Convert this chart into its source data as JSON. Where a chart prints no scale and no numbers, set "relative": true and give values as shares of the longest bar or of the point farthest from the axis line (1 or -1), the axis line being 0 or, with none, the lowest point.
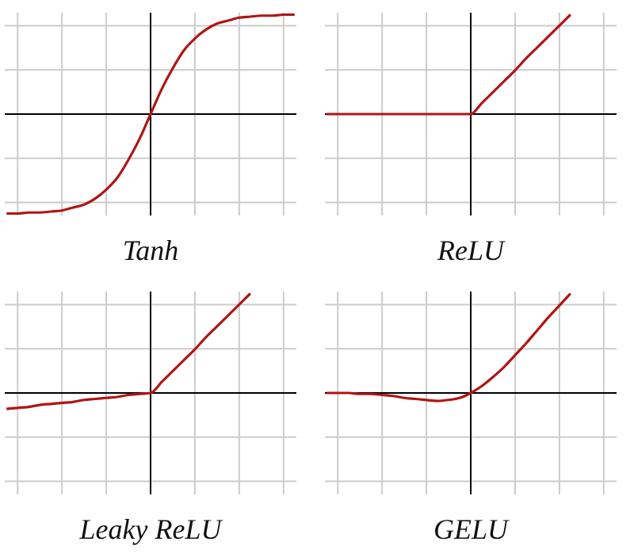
{
  "chart_data": [
    {
      "type": "line",
      "xlabel": "Tanh",
      "relative": true,
      "grid": true,
      "categories": [
        null,
        null,
        null,
        null,
        null,
        null,
        null,
        null,
        null,
        null,
        null,
        null,
        null,
        null,
        null,
        null,
        null,
        null,
        null,
        null,
        null,
        null,
        null,
        null,
        null,
        null,
        null
      ],
      "series": [
        {
          "color": "#b01515",
          "values": [
            -1,
            -1,
            -0.99,
            -0.99,
            -0.98,
            -0.97,
            -0.94,
            -0.91,
            -0.85,
            -0.76,
            -0.64,
            -0.46,
            -0.25,
            0,
            0.25,
            0.46,
            0.64,
            0.76,
            0.85,
            0.91,
            0.94,
            0.97,
            0.98,
            0.99,
            0.99,
            1,
            1
          ]
        }
      ]
    },
    {
      "type": "line",
      "xlabel": "ReLU",
      "relative": true,
      "grid": true,
      "categories": [
        null,
        null,
        null,
        null,
        null,
        null,
        null,
        null,
        null,
        null,
        null,
        null,
        null,
        null,
        null,
        null,
        null,
        null,
        null,
        null,
        null,
        null,
        null,
        null,
        null,
        null,
        null
      ],
      "series": [
        {
          "color": "#b01515",
          "values": [
            0,
            0,
            0,
            0,
            0,
            0,
            0,
            0,
            0,
            0,
            0,
            0,
            0,
            0,
            0.11,
            0.22,
            0.33,
            0.44,
            0.56,
            0.67,
            0.78,
            0.89,
            1,
            null,
            null,
            null,
            null
          ]
        }
      ]
    },
    {
      "type": "line",
      "xlabel": "Leaky ReLU",
      "relative": true,
      "grid": true,
      "categories": [
        null,
        null,
        null,
        null,
        null,
        null,
        null,
        null,
        null,
        null,
        null,
        null,
        null,
        null,
        null,
        null,
        null,
        null,
        null,
        null,
        null,
        null,
        null,
        null,
        null,
        null,
        null
      ],
      "series": [
        {
          "color": "#b01515",
          "values": [
            -0.16,
            -0.15,
            -0.14,
            -0.12,
            -0.11,
            -0.1,
            -0.09,
            -0.07,
            -0.06,
            -0.05,
            -0.04,
            -0.02,
            -0.01,
            0,
            0.11,
            0.22,
            0.33,
            0.44,
            0.56,
            0.67,
            0.78,
            0.89,
            1,
            null,
            null,
            null,
            null
          ]
        }
      ]
    },
    {
      "type": "line",
      "xlabel": "GELU",
      "relative": true,
      "grid": true,
      "categories": [
        null,
        null,
        null,
        null,
        null,
        null,
        null,
        null,
        null,
        null,
        null,
        null,
        null,
        null,
        null,
        null,
        null,
        null,
        null,
        null,
        null,
        null,
        null,
        null,
        null,
        null,
        null
      ],
      "series": [
        {
          "color": "#b01515",
          "values": [
            0,
            0,
            0,
            -0.01,
            -0.01,
            -0.02,
            -0.03,
            -0.05,
            -0.06,
            -0.07,
            -0.08,
            -0.07,
            -0.05,
            0,
            0.07,
            0.16,
            0.26,
            0.38,
            0.5,
            0.63,
            0.76,
            0.88,
            1,
            null,
            null,
            null,
            null
          ]
        }
      ]
    }
  ]
}
